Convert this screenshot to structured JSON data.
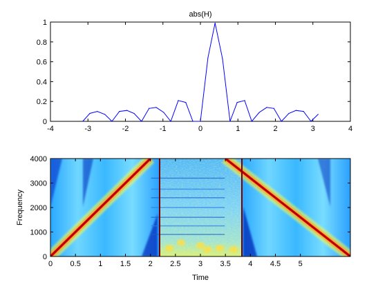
{
  "chart_data": [
    {
      "type": "line",
      "title": "abs(H)",
      "xlabel": "",
      "ylabel": "",
      "xlim": [
        -4,
        4
      ],
      "ylim": [
        0,
        1
      ],
      "xticks": [
        "-4",
        "-3",
        "-2",
        "-1",
        "0",
        "1",
        "2",
        "3",
        "4"
      ],
      "yticks": [
        "0",
        "0.2",
        "0.4",
        "0.6",
        "0.8",
        "1"
      ],
      "grid": false,
      "color": "#0000ff",
      "x": [
        -3.14,
        -2.95,
        -2.75,
        -2.55,
        -2.36,
        -2.16,
        -1.96,
        -1.77,
        -1.57,
        -1.37,
        -1.18,
        -0.98,
        -0.79,
        -0.59,
        -0.39,
        -0.2,
        0.0,
        0.2,
        0.39,
        0.59,
        0.79,
        0.98,
        1.18,
        1.37,
        1.57,
        1.77,
        1.96,
        2.16,
        2.36,
        2.55,
        2.75,
        2.95,
        3.14
      ],
      "y": [
        0.0,
        0.08,
        0.1,
        0.07,
        0.0,
        0.1,
        0.11,
        0.08,
        0.0,
        0.13,
        0.14,
        0.09,
        0.0,
        0.21,
        0.19,
        0.0,
        0.0,
        0.64,
        0.99,
        0.63,
        0.0,
        0.19,
        0.21,
        0.0,
        0.09,
        0.14,
        0.13,
        0.0,
        0.08,
        0.11,
        0.1,
        0.0,
        0.07
      ]
    },
    {
      "type": "heatmap",
      "title": "",
      "xlabel": "Time",
      "ylabel": "Frequency",
      "xlim": [
        0,
        6
      ],
      "ylim": [
        0,
        4000
      ],
      "xticks": [
        "0",
        "0.5",
        "1",
        "1.5",
        "2",
        "2.5",
        "3",
        "3.5",
        "4",
        "4.5",
        "5"
      ],
      "yticks": [
        "0",
        "1000",
        "2000",
        "3000",
        "4000"
      ],
      "colormap": "jet",
      "segments": [
        {
          "kind": "linear-chirp",
          "t_start": 0,
          "t_end": 2,
          "f_start": 0,
          "f_end": 4000
        },
        {
          "kind": "broadband-noise",
          "t_start": 2,
          "t_end": 3.5
        },
        {
          "kind": "linear-chirp",
          "t_start": 3.5,
          "t_end": 6,
          "f_start": 4000,
          "f_end": 0
        }
      ]
    }
  ]
}
